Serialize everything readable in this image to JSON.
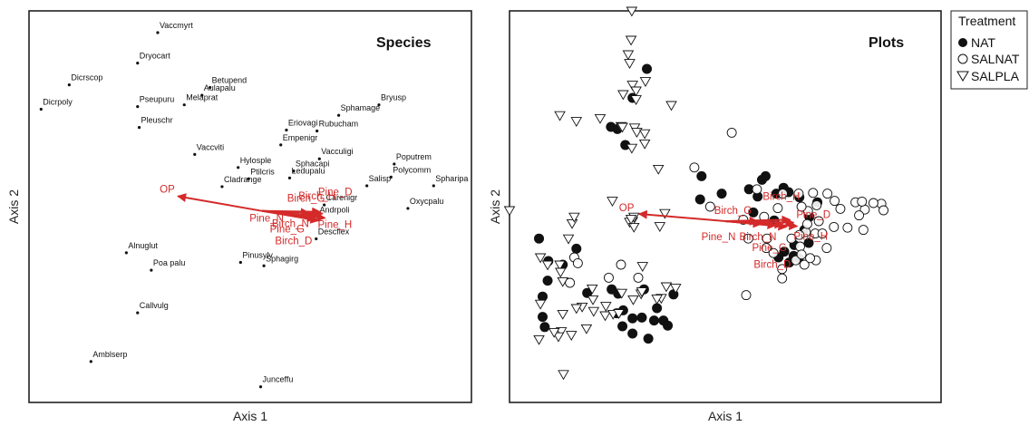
{
  "colors": {
    "arrow": "#d42a2a",
    "frame": "#222222",
    "point": "#111111"
  },
  "chart_data": [
    {
      "type": "scatter",
      "title": "Species",
      "xlabel": "Axis 1",
      "ylabel": "Axis 2",
      "xlim": [
        -2.9,
        2.6
      ],
      "ylim": [
        -2.2,
        2.3
      ],
      "species": [
        {
          "name": "Vaccmyrt",
          "x": -1.3,
          "y": 2.05
        },
        {
          "name": "Dicrscop",
          "x": -2.4,
          "y": 1.45
        },
        {
          "name": "Dicrpoly",
          "x": -2.75,
          "y": 1.17
        },
        {
          "name": "Dryocart",
          "x": -1.55,
          "y": 1.7
        },
        {
          "name": "Betupend",
          "x": -0.65,
          "y": 1.42
        },
        {
          "name": "Aulapalu",
          "x": -0.75,
          "y": 1.33
        },
        {
          "name": "Melaprat",
          "x": -0.97,
          "y": 1.22
        },
        {
          "name": "Pseupuru",
          "x": -1.55,
          "y": 1.2
        },
        {
          "name": "Pleuschr",
          "x": -1.53,
          "y": 0.96
        },
        {
          "name": "Bryusp",
          "x": 1.45,
          "y": 1.22
        },
        {
          "name": "Sphamage",
          "x": 0.95,
          "y": 1.1
        },
        {
          "name": "Rubucham",
          "x": 0.68,
          "y": 0.92
        },
        {
          "name": "Eriovagi",
          "x": 0.3,
          "y": 0.93
        },
        {
          "name": "Empenigr",
          "x": 0.23,
          "y": 0.76
        },
        {
          "name": "Vaccviti",
          "x": -0.84,
          "y": 0.65
        },
        {
          "name": "Hylosple",
          "x": -0.3,
          "y": 0.5
        },
        {
          "name": "Vacculigi",
          "x": 0.71,
          "y": 0.6
        },
        {
          "name": "Poputrem",
          "x": 1.64,
          "y": 0.54
        },
        {
          "name": "Sphacapi",
          "x": 0.39,
          "y": 0.46
        },
        {
          "name": "Ledupalu",
          "x": 0.34,
          "y": 0.38
        },
        {
          "name": "Ptilcris",
          "x": -0.17,
          "y": 0.37
        },
        {
          "name": "Cladrange",
          "x": -0.5,
          "y": 0.28
        },
        {
          "name": "Polycomm",
          "x": 1.6,
          "y": 0.39
        },
        {
          "name": "Spharipa",
          "x": 2.13,
          "y": 0.29
        },
        {
          "name": "Salisp",
          "x": 1.3,
          "y": 0.29
        },
        {
          "name": "Oxycpalu",
          "x": 1.81,
          "y": 0.03
        },
        {
          "name": "Carenigr",
          "x": 0.77,
          "y": 0.07
        },
        {
          "name": "Andrpoli",
          "x": 0.69,
          "y": -0.07
        },
        {
          "name": "Descflex",
          "x": 0.67,
          "y": -0.32
        },
        {
          "name": "Alnuglut",
          "x": -1.69,
          "y": -0.48
        },
        {
          "name": "Pinusylv",
          "x": -0.27,
          "y": -0.59
        },
        {
          "name": "Poa palu",
          "x": -1.38,
          "y": -0.68
        },
        {
          "name": "Sphagirg",
          "x": 0.02,
          "y": -0.63
        },
        {
          "name": "Callvulg",
          "x": -1.55,
          "y": -1.17
        },
        {
          "name": "Amblserp",
          "x": -2.13,
          "y": -1.73
        },
        {
          "name": "Junceffu",
          "x": -0.02,
          "y": -2.02
        }
      ],
      "vectors": [
        {
          "name": "OP",
          "x": -1.05,
          "y": 0.17
        },
        {
          "name": "Birch_G",
          "x": 0.58,
          "y": -0.02
        },
        {
          "name": "Birch_H",
          "x": 0.72,
          "y": -0.01
        },
        {
          "name": "Pine_D",
          "x": 0.75,
          "y": -0.03
        },
        {
          "name": "Pine_N",
          "x": 0.63,
          "y": -0.06
        },
        {
          "name": "Birch_N",
          "x": 0.66,
          "y": -0.09
        },
        {
          "name": "Pine_G",
          "x": 0.68,
          "y": -0.06
        },
        {
          "name": "Pine_H",
          "x": 0.78,
          "y": -0.08
        },
        {
          "name": "Birch_D",
          "x": 0.7,
          "y": -0.11
        }
      ]
    },
    {
      "type": "scatter",
      "title": "Plots",
      "xlabel": "Axis 1",
      "ylabel": "Axis 2",
      "xlim": [
        -3,
        3
      ],
      "ylim": [
        -2.5,
        2.9
      ],
      "legend": {
        "title": "Treatment",
        "placement": "top-right outside",
        "entries": [
          {
            "name": "NAT",
            "marker": "filled-circle"
          },
          {
            "name": "SALNAT",
            "marker": "open-circle"
          },
          {
            "name": "SALPLA",
            "marker": "open-triangle-down"
          }
        ]
      },
      "series": [
        {
          "name": "NAT",
          "points": [
            [
              -1.09,
              2.1
            ],
            [
              -1.29,
              1.7
            ],
            [
              -1.59,
              1.3
            ],
            [
              -1.5,
              1.27
            ],
            [
              -1.39,
              1.05
            ],
            [
              0.56,
              0.62
            ],
            [
              0.51,
              0.57
            ],
            [
              -0.33,
              0.62
            ],
            [
              0.81,
              0.46
            ],
            [
              0.88,
              0.4
            ],
            [
              0.33,
              0.44
            ],
            [
              -0.05,
              0.38
            ],
            [
              -0.35,
              0.3
            ],
            [
              0.45,
              0.34
            ],
            [
              0.71,
              0.38
            ],
            [
              1.03,
              0.33
            ],
            [
              1.28,
              0.26
            ],
            [
              1.16,
              0.08
            ],
            [
              0.68,
              0.01
            ],
            [
              1.17,
              0.06
            ],
            [
              0.39,
              0.12
            ],
            [
              1.1,
              -0.12
            ],
            [
              1.16,
              -0.3
            ],
            [
              0.96,
              -0.33
            ],
            [
              0.82,
              -0.42
            ],
            [
              0.95,
              -0.48
            ],
            [
              0.74,
              -0.5
            ],
            [
              1.02,
              -0.51
            ],
            [
              0.89,
              -0.57
            ],
            [
              -2.59,
              -0.24
            ],
            [
              -2.07,
              -0.38
            ],
            [
              -2.26,
              -0.6
            ],
            [
              -2.46,
              -0.55
            ],
            [
              -2.47,
              -0.82
            ],
            [
              -2.54,
              -1.04
            ],
            [
              -1.92,
              -0.99
            ],
            [
              -1.58,
              -0.94
            ],
            [
              -1.49,
              -1.0
            ],
            [
              -1.42,
              -1.23
            ],
            [
              -1.51,
              -1.27
            ],
            [
              -2.54,
              -1.32
            ],
            [
              -2.51,
              -1.46
            ],
            [
              -1.13,
              -0.94
            ],
            [
              -0.72,
              -1.01
            ],
            [
              -0.95,
              -1.2
            ],
            [
              -1.29,
              -1.34
            ],
            [
              -1.16,
              -1.33
            ],
            [
              -1.29,
              -1.55
            ],
            [
              -0.99,
              -1.37
            ],
            [
              -0.86,
              -1.37
            ],
            [
              -0.8,
              -1.44
            ],
            [
              -1.07,
              -1.62
            ],
            [
              -1.43,
              -1.45
            ]
          ]
        },
        {
          "name": "SALNAT",
          "points": [
            [
              0.09,
              1.22
            ],
            [
              -0.43,
              0.74
            ],
            [
              0.44,
              0.44
            ],
            [
              0.8,
              0.38
            ],
            [
              1.02,
              0.38
            ],
            [
              1.22,
              0.39
            ],
            [
              1.42,
              0.38
            ],
            [
              1.81,
              0.26
            ],
            [
              2.17,
              0.24
            ],
            [
              2.06,
              0.25
            ],
            [
              1.94,
              0.16
            ],
            [
              1.52,
              0.28
            ],
            [
              1.6,
              0.17
            ],
            [
              1.27,
              0.22
            ],
            [
              1.15,
              0.14
            ],
            [
              1.06,
              0.2
            ],
            [
              0.73,
              0.18
            ],
            [
              -0.21,
              0.2
            ],
            [
              0.25,
              0.02
            ],
            [
              0.54,
              0.06
            ],
            [
              1.3,
              0.0
            ],
            [
              1.51,
              -0.08
            ],
            [
              1.7,
              -0.09
            ],
            [
              1.92,
              -0.12
            ],
            [
              1.25,
              -0.17
            ],
            [
              1.35,
              -0.17
            ],
            [
              0.32,
              -0.24
            ],
            [
              0.58,
              -0.24
            ],
            [
              0.57,
              -0.37
            ],
            [
              0.67,
              -0.44
            ],
            [
              0.79,
              -0.66
            ],
            [
              1.26,
              -0.54
            ],
            [
              1.04,
              -0.35
            ],
            [
              1.1,
              -0.6
            ],
            [
              0.98,
              -0.54
            ],
            [
              1.06,
              -0.46
            ],
            [
              1.18,
              -0.51
            ],
            [
              1.41,
              -0.37
            ],
            [
              1.86,
              0.08
            ],
            [
              1.9,
              0.27
            ],
            [
              2.2,
              0.15
            ],
            [
              1.12,
              -0.15
            ],
            [
              1.03,
              -0.19
            ],
            [
              0.92,
              -0.24
            ],
            [
              1.14,
              -0.04
            ],
            [
              -2.1,
              -0.5
            ],
            [
              -2.05,
              -0.58
            ],
            [
              -1.62,
              -0.78
            ],
            [
              -1.21,
              -0.78
            ],
            [
              -1.45,
              -0.6
            ],
            [
              -2.16,
              -0.85
            ],
            [
              0.29,
              -1.02
            ],
            [
              0.79,
              -0.79
            ]
          ]
        },
        {
          "name": "SALPLA",
          "points": [
            [
              -1.3,
              2.9
            ],
            [
              -1.31,
              2.5
            ],
            [
              -1.35,
              2.3
            ],
            [
              -1.33,
              2.18
            ],
            [
              -1.11,
              1.93
            ],
            [
              -1.29,
              1.88
            ],
            [
              -1.24,
              1.8
            ],
            [
              -1.42,
              1.75
            ],
            [
              -1.24,
              1.68
            ],
            [
              -0.75,
              1.6
            ],
            [
              -2.3,
              1.46
            ],
            [
              -2.07,
              1.38
            ],
            [
              -1.74,
              1.42
            ],
            [
              -1.45,
              1.31
            ],
            [
              -1.43,
              1.3
            ],
            [
              -1.26,
              1.29
            ],
            [
              -1.23,
              1.23
            ],
            [
              -1.12,
              1.21
            ],
            [
              -1.12,
              1.07
            ],
            [
              -1.3,
              1.01
            ],
            [
              -0.93,
              0.72
            ],
            [
              -1.57,
              0.28
            ],
            [
              -3.0,
              0.15
            ],
            [
              -2.13,
              -0.03
            ],
            [
              -2.1,
              0.06
            ],
            [
              -1.33,
              -0.01
            ],
            [
              -1.29,
              0.0
            ],
            [
              -1.27,
              -0.08
            ],
            [
              -1.27,
              0.06
            ],
            [
              -1.31,
              0.03
            ],
            [
              -0.84,
              0.11
            ],
            [
              -0.91,
              -0.07
            ],
            [
              -2.18,
              -0.24
            ],
            [
              -2.3,
              -0.6
            ],
            [
              -2.29,
              -0.7
            ],
            [
              -2.47,
              -0.6
            ],
            [
              -2.57,
              -0.5
            ],
            [
              -1.15,
              -0.62
            ],
            [
              -1.17,
              -1.0
            ],
            [
              -1.44,
              -0.99
            ],
            [
              -1.84,
              -1.08
            ],
            [
              -1.85,
              -0.93
            ],
            [
              -1.16,
              -0.97
            ],
            [
              -2.26,
              -0.83
            ],
            [
              -2.28,
              -1.52
            ],
            [
              -2.32,
              -1.59
            ],
            [
              -2.38,
              -1.53
            ],
            [
              -2.59,
              -1.63
            ],
            [
              -2.14,
              -1.57
            ],
            [
              -1.99,
              -1.18
            ],
            [
              -1.83,
              -1.24
            ],
            [
              -2.25,
              -2.11
            ],
            [
              -1.67,
              -1.3
            ],
            [
              -1.56,
              -1.28
            ],
            [
              -1.48,
              -1.27
            ],
            [
              -1.93,
              -1.48
            ],
            [
              -0.89,
              -1.06
            ],
            [
              -2.07,
              -1.2
            ],
            [
              -1.66,
              -1.17
            ],
            [
              -2.26,
              -1.28
            ],
            [
              -1.28,
              -1.08
            ],
            [
              -0.95,
              -1.07
            ],
            [
              -0.82,
              -0.9
            ],
            [
              -0.69,
              -0.92
            ],
            [
              -2.57,
              -1.14
            ]
          ]
        }
      ],
      "vectors": [
        {
          "name": "OP",
          "x": -1.2,
          "y": 0.1
        },
        {
          "name": "Birch_G",
          "x": 0.45,
          "y": 0.0
        },
        {
          "name": "Birch_H",
          "x": 0.9,
          "y": 0.02
        },
        {
          "name": "Pine_D",
          "x": 0.95,
          "y": -0.02
        },
        {
          "name": "Pine_N",
          "x": 0.5,
          "y": -0.04
        },
        {
          "name": "Birch_N",
          "x": 0.7,
          "y": -0.06
        },
        {
          "name": "Pine_G",
          "x": 0.8,
          "y": -0.05
        },
        {
          "name": "Pine_H",
          "x": 1.0,
          "y": -0.07
        },
        {
          "name": "Birch_D",
          "x": 0.85,
          "y": -0.08
        }
      ]
    }
  ]
}
